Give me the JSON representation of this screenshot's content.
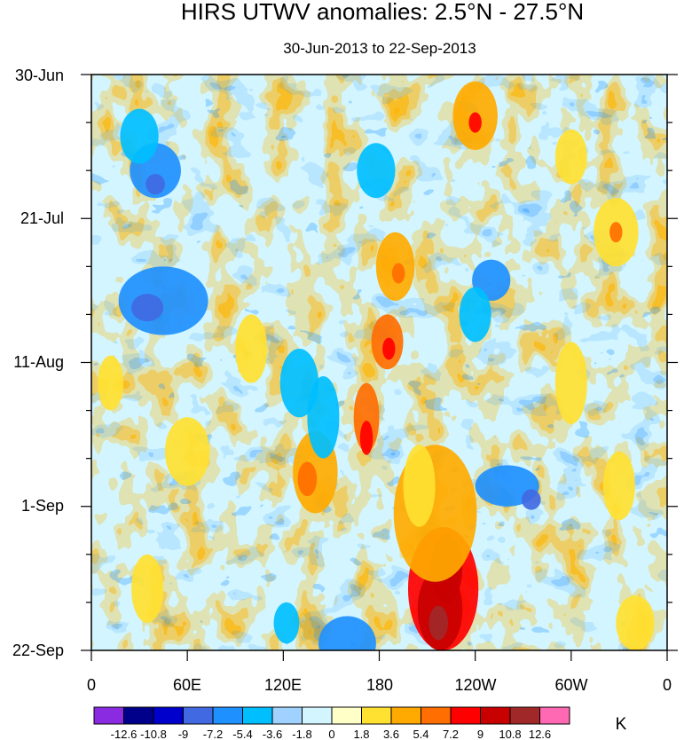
{
  "chart_data": {
    "type": "heatmap",
    "title": "HIRS UTWV anomalies: 2.5°N - 27.5°N",
    "subtitle": "30-Jun-2013 to 22-Sep-2013",
    "xlabel": "",
    "ylabel": "",
    "x_ticks": [
      "0",
      "60E",
      "120E",
      "180",
      "120W",
      "60W",
      "0"
    ],
    "x_range_deg": [
      0,
      360
    ],
    "y_ticks": [
      "30-Jun",
      "21-Jul",
      "11-Aug",
      "1-Sep",
      "22-Sep"
    ],
    "y_range_days": [
      0,
      84
    ],
    "colorbar": {
      "unit": "K",
      "levels": [
        "-12.6",
        "-10.8",
        "-9",
        "-7.2",
        "-5.4",
        "-3.6",
        "-1.8",
        "0",
        "1.8",
        "3.6",
        "5.4",
        "7.2",
        "9",
        "10.8",
        "12.6"
      ],
      "colors": [
        "#8a2be2",
        "#00008b",
        "#0000cd",
        "#4169e1",
        "#1e90ff",
        "#00bfff",
        "#a0d2ff",
        "#d2f5ff",
        "#ffffc8",
        "#ffe132",
        "#ffaa00",
        "#ff6e00",
        "#ff0000",
        "#c80000",
        "#a02828",
        "#ff69b4"
      ]
    }
  }
}
